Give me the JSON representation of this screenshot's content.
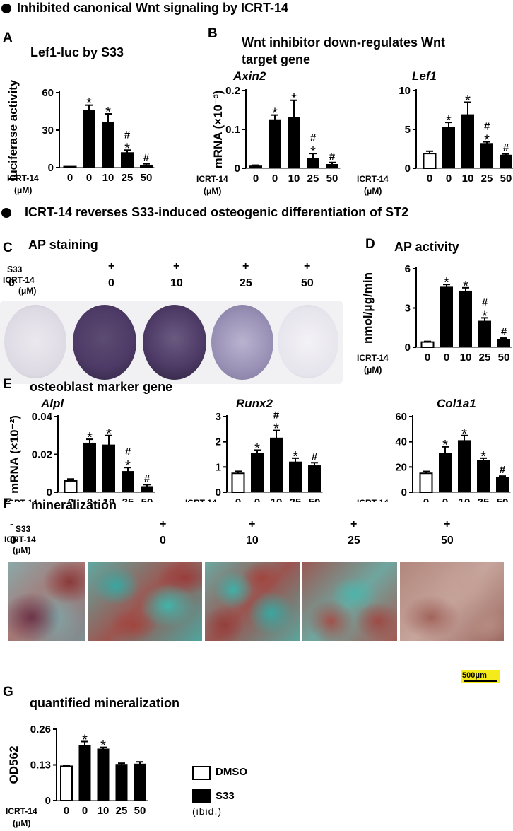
{
  "section1": {
    "title": "Inhibited canonical Wnt signaling by ICRT-14"
  },
  "section2": {
    "title": "ICRT-14 reverses S33-induced osteogenic differentiation of ST2"
  },
  "panels": {
    "A": {
      "letter": "A",
      "title": "Lef1-luc by S33"
    },
    "B": {
      "letter": "B",
      "title_line1": "Wnt inhibitor down-regulates Wnt",
      "title_line2": "target gene"
    },
    "C": {
      "letter": "C",
      "title": "AP staining"
    },
    "D": {
      "letter": "D",
      "title": "AP activity"
    },
    "E": {
      "letter": "E",
      "title": "osteoblast marker gene"
    },
    "F": {
      "letter": "F",
      "title": "mineralization"
    },
    "G": {
      "letter": "G",
      "title": "quantified mineralization"
    }
  },
  "conditions": {
    "s33_label": "S33",
    "icrt_label": "ICRT-14",
    "icrt_unit": "(μM)",
    "s33_signs": [
      "-",
      "+",
      "+",
      "+",
      "+"
    ],
    "doses": [
      "0",
      "0",
      "10",
      "25",
      "50"
    ]
  },
  "scalebar": {
    "label": "500μm",
    "color": "#f5ea1a"
  },
  "legend": {
    "dmso": "DMSO",
    "s33": "S33",
    "note": "(ibid.)"
  },
  "colors": {
    "s33_bar": "#000000",
    "dmso_bar": "#ffffff",
    "staining": "#4d3a66",
    "mineral_red": "#8a3a3a",
    "mineral_teal": "#3aa6a0"
  },
  "chart_data": [
    {
      "id": "A",
      "type": "bar",
      "ylabel": "luciferase activity",
      "categories": [
        "0",
        "0",
        "10",
        "25",
        "50"
      ],
      "series": [
        {
          "values": [
            0.8,
            46,
            36,
            12,
            2
          ],
          "errors": [
            0,
            4,
            7,
            2,
            1
          ],
          "fills": [
            "dmso",
            "s33",
            "s33",
            "s33",
            "s33"
          ]
        }
      ],
      "ylim": [
        0,
        60
      ],
      "yticks": [
        "0",
        "30",
        "60"
      ],
      "yticks_values": [
        0,
        30,
        60
      ],
      "annotations": [
        "",
        "*",
        "*",
        "#*",
        "#"
      ]
    },
    {
      "id": "B1",
      "type": "bar",
      "title": "Axin2",
      "ylabel": "mRNA (×10⁻³)",
      "categories": [
        "0",
        "0",
        "10",
        "25",
        "50"
      ],
      "series": [
        {
          "values": [
            0.006,
            0.125,
            0.13,
            0.026,
            0.01
          ],
          "errors": [
            0.002,
            0.012,
            0.045,
            0.012,
            0.005
          ],
          "fills": [
            "s33",
            "s33",
            "s33",
            "s33",
            "s33"
          ]
        }
      ],
      "ylim": [
        0,
        0.2
      ],
      "yticks": [
        "0",
        "0.1",
        "0.2"
      ],
      "yticks_values": [
        0,
        0.1,
        0.2
      ],
      "annotations": [
        "",
        "*",
        "*",
        "#*",
        "#"
      ]
    },
    {
      "id": "B2",
      "type": "bar",
      "title": "Lef1",
      "categories": [
        "0",
        "0",
        "10",
        "25",
        "50"
      ],
      "series": [
        {
          "values": [
            1.9,
            5.3,
            6.9,
            3.2,
            1.7
          ],
          "errors": [
            0.3,
            0.6,
            1.6,
            0.2,
            0.15
          ],
          "fills": [
            "dmso",
            "s33",
            "s33",
            "s33",
            "s33"
          ]
        }
      ],
      "ylim": [
        0,
        10
      ],
      "yticks": [
        "0",
        "5",
        "10"
      ],
      "yticks_values": [
        0,
        5,
        10
      ],
      "annotations": [
        "",
        "*",
        "*",
        "#*",
        "#"
      ]
    },
    {
      "id": "D",
      "type": "bar",
      "ylabel": "nmol/μg/min",
      "categories": [
        "0",
        "0",
        "10",
        "25",
        "50"
      ],
      "series": [
        {
          "values": [
            0.4,
            4.6,
            4.3,
            2.0,
            0.6
          ],
          "errors": [
            0.05,
            0.2,
            0.25,
            0.25,
            0.1
          ],
          "fills": [
            "dmso",
            "s33",
            "s33",
            "s33",
            "s33"
          ]
        }
      ],
      "ylim": [
        0,
        6
      ],
      "yticks": [
        "0",
        "3",
        "6"
      ],
      "yticks_values": [
        0,
        3,
        6
      ],
      "annotations": [
        "",
        "*",
        "*",
        "#*",
        "#"
      ]
    },
    {
      "id": "E1",
      "type": "bar",
      "title": "Alpl",
      "ylabel": "mRNA (×10⁻²)",
      "categories": [
        "0",
        "0",
        "10",
        "25",
        "50"
      ],
      "series": [
        {
          "values": [
            0.006,
            0.026,
            0.025,
            0.011,
            0.003
          ],
          "errors": [
            0.001,
            0.002,
            0.005,
            0.002,
            0.001
          ],
          "fills": [
            "dmso",
            "s33",
            "s33",
            "s33",
            "s33"
          ]
        }
      ],
      "ylim": [
        0,
        0.04
      ],
      "yticks": [
        "0",
        "0.02",
        "0.04"
      ],
      "yticks_values": [
        0,
        0.02,
        0.04
      ],
      "annotations": [
        "",
        "*",
        "*",
        "#*",
        "#"
      ]
    },
    {
      "id": "E2",
      "type": "bar",
      "title": "Runx2",
      "categories": [
        "0",
        "0",
        "10",
        "25",
        "50"
      ],
      "series": [
        {
          "values": [
            0.75,
            1.55,
            2.15,
            1.2,
            1.05
          ],
          "errors": [
            0.08,
            0.12,
            0.3,
            0.15,
            0.12
          ],
          "fills": [
            "dmso",
            "s33",
            "s33",
            "s33",
            "s33"
          ]
        }
      ],
      "ylim": [
        0,
        3
      ],
      "yticks": [
        "0",
        "1",
        "2",
        "3"
      ],
      "yticks_values": [
        0,
        1,
        2,
        3
      ],
      "annotations": [
        "",
        "*",
        "#*",
        "*",
        "#"
      ]
    },
    {
      "id": "E3",
      "type": "bar",
      "title": "Col1a1",
      "categories": [
        "0",
        "0",
        "10",
        "25",
        "50"
      ],
      "series": [
        {
          "values": [
            15,
            31,
            41,
            25,
            12
          ],
          "errors": [
            1.5,
            5,
            4,
            2,
            0.8
          ],
          "fills": [
            "dmso",
            "s33",
            "s33",
            "s33",
            "s33"
          ]
        }
      ],
      "ylim": [
        0,
        60
      ],
      "yticks": [
        "0",
        "20",
        "40",
        "60"
      ],
      "yticks_values": [
        0,
        20,
        40,
        60
      ],
      "annotations": [
        "",
        "*",
        "*",
        "*",
        "#"
      ]
    },
    {
      "id": "G",
      "type": "bar",
      "ylabel": "OD562",
      "categories": [
        "0",
        "0",
        "10",
        "25",
        "50"
      ],
      "series": [
        {
          "values": [
            0.125,
            0.2,
            0.188,
            0.132,
            0.133
          ],
          "errors": [
            0.003,
            0.015,
            0.006,
            0.004,
            0.008
          ],
          "fills": [
            "dmso",
            "s33",
            "s33",
            "s33",
            "s33"
          ]
        }
      ],
      "ylim": [
        0,
        0.26
      ],
      "yticks": [
        "0",
        "0.13",
        "0.26"
      ],
      "yticks_values": [
        0,
        0.13,
        0.26
      ],
      "annotations": [
        "",
        "*",
        "*",
        "",
        ""
      ]
    }
  ]
}
